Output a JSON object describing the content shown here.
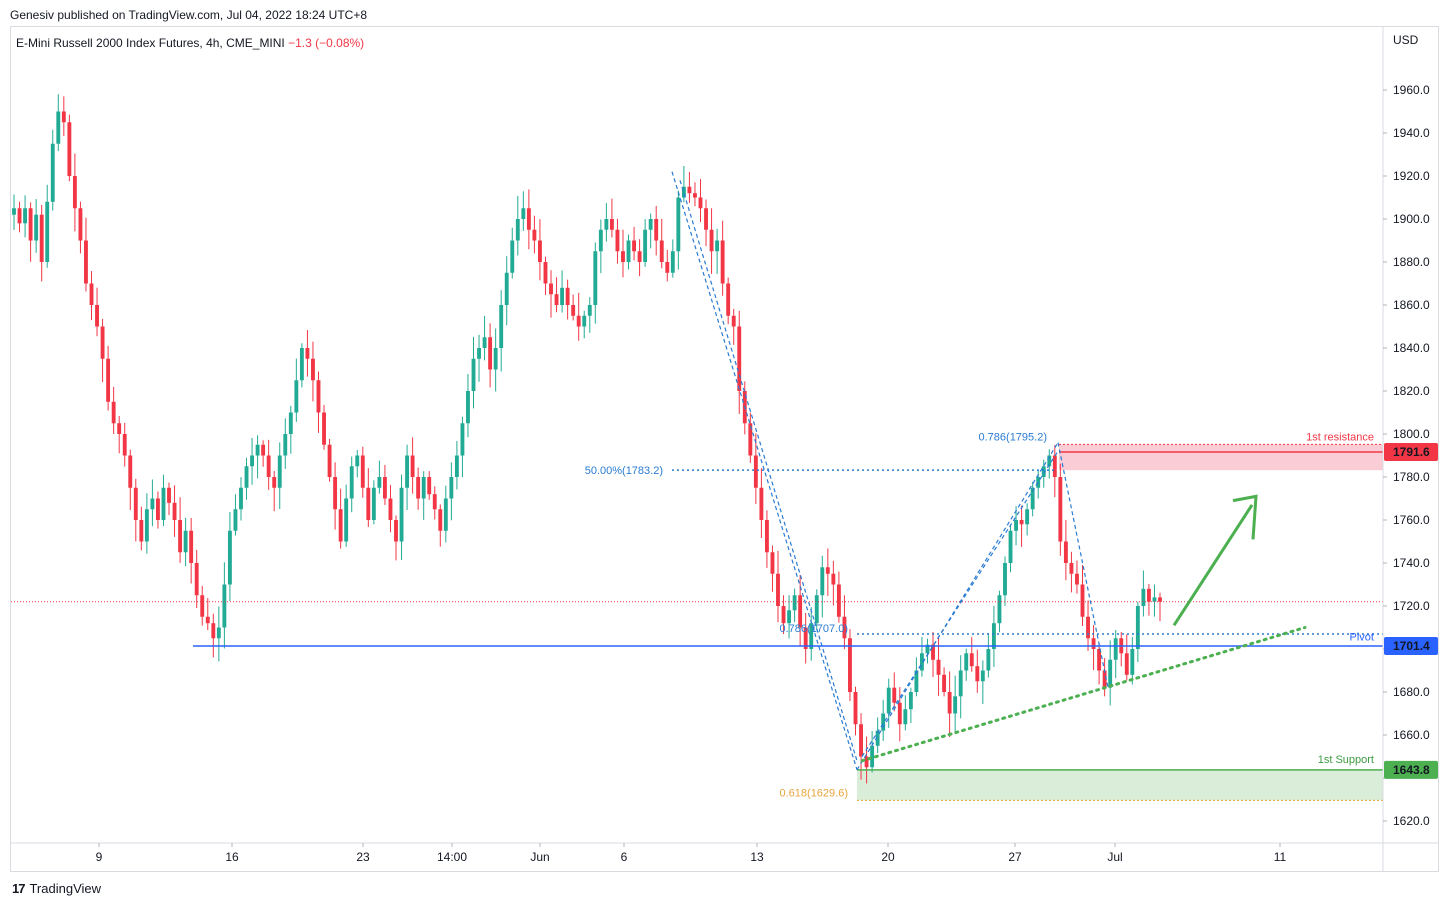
{
  "header": {
    "published_by": "Genesiv published on TradingView.com, Jul 04, 2022 18:24 UTC+8"
  },
  "legend": {
    "symbol": "E-Mini Russell 2000 Index Futures, 4h, CME_MINI",
    "change": "−1.3 (−0.08%)"
  },
  "footer": {
    "brand": "TradingView",
    "mark": "17"
  },
  "colors": {
    "up": "#22ab94",
    "down": "#f23645",
    "pivot_blue": "#2962ff",
    "support_green": "#4caf50",
    "fib_blue": "#2a7bd3",
    "fib_orange": "#e8a33d",
    "resistance_red": "#f23645"
  },
  "chart_data": {
    "type": "candlestick",
    "currency": "USD",
    "y_axis": {
      "ticks": [
        1960,
        1940,
        1920,
        1900,
        1880,
        1860,
        1840,
        1820,
        1800,
        1780,
        1760,
        1740,
        1720,
        1700,
        1680,
        1660,
        1640,
        1620
      ],
      "visible_labels": [
        "1960.0",
        "1940.0",
        "1920.0",
        "1900.0",
        "1880.0",
        "1860.0",
        "1840.0",
        "1820.0",
        "1800.0",
        "1780.0",
        "1760.0",
        "1740.0",
        "1720.0",
        "1680.0",
        "1660.0",
        "1620.0"
      ]
    },
    "x_axis": {
      "labels": [
        "9",
        "16",
        "23",
        "14:00",
        "Jun",
        "6",
        "13",
        "20",
        "27",
        "Jul",
        "11"
      ]
    },
    "levels": [
      {
        "name": "1st resistance",
        "price": 1791.6,
        "label": "1791.6",
        "type": "resistance"
      },
      {
        "name": "Pivot",
        "price": 1701.4,
        "label": "1701.4",
        "type": "pivot"
      },
      {
        "name": "1st Support",
        "price": 1643.8,
        "label": "1643.8",
        "type": "support"
      }
    ],
    "fib_labels": [
      {
        "text": "50.00%(1783.2)",
        "price": 1783.2
      },
      {
        "text": "0.786(1795.2)",
        "price": 1795.2
      },
      {
        "text": "0.786(1707.0)",
        "price": 1707.0
      },
      {
        "text": "0.618(1629.6)",
        "price": 1629.6
      }
    ],
    "last_price": 1722.0,
    "ohlc_path": [
      1905,
      1898,
      1905,
      1890,
      1902,
      1880,
      1908,
      1935,
      1950,
      1945,
      1920,
      1905,
      1890,
      1870,
      1860,
      1850,
      1835,
      1815,
      1805,
      1800,
      1790,
      1775,
      1760,
      1750,
      1765,
      1770,
      1760,
      1775,
      1768,
      1760,
      1745,
      1755,
      1740,
      1725,
      1715,
      1712,
      1705,
      1710,
      1730,
      1755,
      1765,
      1775,
      1785,
      1790,
      1795,
      1790,
      1780,
      1775,
      1790,
      1800,
      1810,
      1825,
      1840,
      1835,
      1825,
      1810,
      1795,
      1780,
      1765,
      1750,
      1770,
      1785,
      1790,
      1775,
      1760,
      1775,
      1780,
      1770,
      1760,
      1750,
      1775,
      1790,
      1780,
      1770,
      1780,
      1772,
      1765,
      1755,
      1770,
      1780,
      1790,
      1805,
      1820,
      1835,
      1840,
      1845,
      1830,
      1840,
      1860,
      1875,
      1890,
      1900,
      1905,
      1895,
      1890,
      1880,
      1870,
      1865,
      1860,
      1868,
      1860,
      1855,
      1850,
      1855,
      1860,
      1885,
      1895,
      1900,
      1895,
      1885,
      1880,
      1890,
      1885,
      1880,
      1895,
      1900,
      1890,
      1880,
      1875,
      1885,
      1910,
      1915,
      1912,
      1910,
      1905,
      1895,
      1885,
      1890,
      1870,
      1855,
      1850,
      1820,
      1805,
      1790,
      1775,
      1760,
      1745,
      1735,
      1720,
      1712,
      1718,
      1725,
      1710,
      1700,
      1712,
      1725,
      1738,
      1735,
      1730,
      1715,
      1705,
      1680,
      1665,
      1650,
      1645,
      1655,
      1662,
      1670,
      1682,
      1675,
      1665,
      1672,
      1680,
      1690,
      1698,
      1702,
      1695,
      1688,
      1680,
      1670,
      1678,
      1690,
      1698,
      1692,
      1685,
      1690,
      1700,
      1712,
      1725,
      1740,
      1755,
      1760,
      1758,
      1765,
      1775,
      1780,
      1785,
      1790,
      1780,
      1750,
      1740,
      1735,
      1730,
      1715,
      1705,
      1700,
      1690,
      1682,
      1695,
      1705,
      1698,
      1688,
      1700,
      1720,
      1728,
      1722,
      1724,
      1722
    ]
  }
}
